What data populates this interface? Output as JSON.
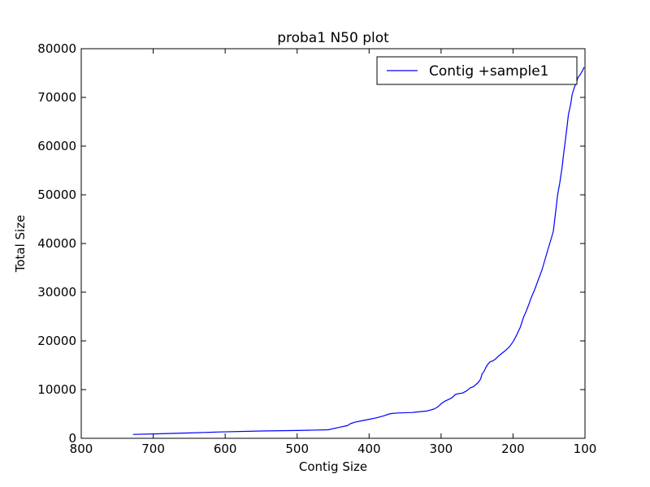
{
  "chart_data": {
    "type": "line",
    "title": "proba1 N50 plot",
    "xlabel": "Contig Size",
    "ylabel": "Total Size",
    "xlim": [
      800,
      100
    ],
    "ylim": [
      0,
      80000
    ],
    "x_inverted": true,
    "xticks": [
      800,
      700,
      600,
      500,
      400,
      300,
      200,
      100
    ],
    "yticks": [
      0,
      10000,
      20000,
      30000,
      40000,
      50000,
      60000,
      70000,
      80000
    ],
    "grid": false,
    "legend_position": "top-right",
    "series": [
      {
        "name": "Contig +sample1",
        "color": "#0000ff",
        "x": [
          728,
          700,
          650,
          608,
          550,
          500,
          457,
          440,
          430,
          426,
          420,
          410,
          400,
          390,
          380,
          372,
          368,
          360,
          340,
          320,
          310,
          305,
          302,
          300,
          295,
          285,
          280,
          278,
          270,
          265,
          260,
          255,
          252,
          248,
          245,
          243,
          240,
          238,
          235,
          232,
          228,
          225,
          220,
          215,
          210,
          205,
          200,
          195,
          190,
          185,
          182,
          178,
          175,
          170,
          165,
          160,
          155,
          150,
          147,
          144,
          142,
          140,
          138,
          135,
          132,
          130,
          127,
          125,
          123,
          120,
          118,
          115,
          112,
          110,
          107,
          105,
          103,
          102,
          101
        ],
        "y": [
          800,
          900,
          1100,
          1300,
          1500,
          1600,
          1750,
          2300,
          2600,
          3000,
          3300,
          3600,
          3900,
          4200,
          4600,
          5000,
          5100,
          5200,
          5300,
          5600,
          6000,
          6400,
          6800,
          7100,
          7600,
          8300,
          9000,
          9100,
          9300,
          9700,
          10300,
          10600,
          11000,
          11500,
          12200,
          13200,
          13800,
          14500,
          15200,
          15700,
          15900,
          16200,
          16900,
          17500,
          18100,
          18800,
          19800,
          21200,
          22800,
          25000,
          26000,
          27500,
          28800,
          30500,
          32500,
          34500,
          37000,
          39500,
          41000,
          42500,
          45000,
          47500,
          50000,
          52500,
          55500,
          58000,
          61500,
          64000,
          66500,
          68500,
          70500,
          72000,
          73000,
          74000,
          74600,
          75100,
          75600,
          76000,
          76200
        ]
      }
    ]
  }
}
